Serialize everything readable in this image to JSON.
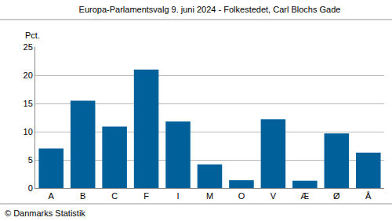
{
  "chart_data": {
    "type": "bar",
    "title": "Europa-Parlamentsvalg 9. juni 2024 - Folkestedet, Carl Blochs Gade",
    "ylabel": "Pct.",
    "categories": [
      "A",
      "B",
      "C",
      "F",
      "I",
      "M",
      "O",
      "V",
      "Æ",
      "Ø",
      "Å"
    ],
    "values": [
      7.0,
      15.5,
      10.9,
      21.0,
      11.8,
      4.2,
      1.4,
      12.2,
      1.3,
      9.7,
      6.3
    ],
    "color": "#00609a",
    "ylim": [
      0,
      25
    ],
    "yticks": [
      0,
      5,
      10,
      15,
      20,
      25
    ],
    "grid": true,
    "annotations": [
      "© Danmarks Statistik"
    ]
  }
}
